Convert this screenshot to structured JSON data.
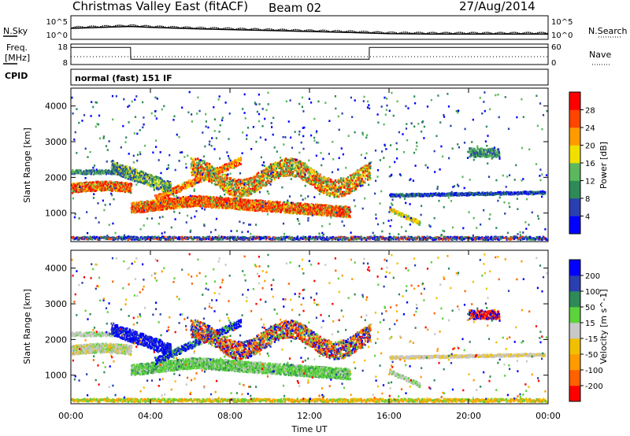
{
  "header": {
    "title": "Christmas Valley East (fitACF)",
    "beam": "Beam 02",
    "date": "27/Aug/2014"
  },
  "panel_labels": {
    "nsky": "N.Sky",
    "nsearch": "N.Search",
    "freq": "Freq.",
    "freq_unit": "[MHz]",
    "nave": "Nave",
    "cpid": "CPID",
    "cpid_value": "normal (fast) 151 IF"
  },
  "colors": {
    "power": [
      "#0000ff",
      "#2a3fb0",
      "#2e8b57",
      "#5cb85c",
      "#f0e000",
      "#ff9a00",
      "#ff4500",
      "#ff0000"
    ],
    "velocity": [
      "#ff0000",
      "#ff6000",
      "#ff9a00",
      "#f0c000",
      "#c8c8c8",
      "#5cd23c",
      "#2e8b57",
      "#2a3fb0",
      "#0000ff"
    ]
  },
  "chart_data": [
    {
      "type": "line",
      "name": "noise",
      "ylabel_left": "N.Sky",
      "ylabel_right": "N.Search",
      "left_ticks": [
        "10^5",
        "10^0"
      ],
      "right_ticks": [
        "10^5",
        "10^0"
      ],
      "x": [
        0,
        1,
        2,
        3,
        4,
        6,
        8,
        10,
        12,
        14,
        15,
        16,
        18,
        20,
        22,
        24
      ],
      "series": [
        {
          "values": [
            3.0,
            3.2,
            3.4,
            3.6,
            3.3,
            2.9,
            2.6,
            2.3,
            2.0,
            1.7,
            1.5,
            1.3,
            1.2,
            1.2,
            1.2,
            1.2
          ]
        }
      ]
    },
    {
      "type": "line",
      "name": "frequency",
      "ylabel_left": "Freq. [MHz]",
      "ylabel_right": "Nave",
      "left_ticks": [
        "18",
        "8"
      ],
      "right_ticks": [
        "60",
        "0"
      ],
      "x": [
        0,
        3.0,
        3.01,
        15.0,
        15.01,
        24
      ],
      "series": [
        {
          "values": [
            16.4,
            16.4,
            10.6,
            10.6,
            16.4,
            16.4
          ]
        }
      ]
    },
    {
      "type": "heatmap",
      "name": "power",
      "xlabel": "",
      "ylabel": "Slant Range [km]",
      "xlim": [
        0,
        24
      ],
      "ylim": [
        200,
        4500
      ],
      "yticks": [
        1000,
        2000,
        3000,
        4000
      ],
      "colorbar_label": "Power [dB]",
      "colorbar_ticks": [
        "4",
        "8",
        "12",
        "16",
        "20",
        "24",
        "28"
      ],
      "colorbar_range": [
        0,
        32
      ]
    },
    {
      "type": "heatmap",
      "name": "velocity",
      "xlabel": "Time UT",
      "ylabel": "Slant Range [km]",
      "xlim": [
        0,
        24
      ],
      "ylim": [
        200,
        4500
      ],
      "yticks": [
        1000,
        2000,
        3000,
        4000
      ],
      "xticks": [
        "00:00",
        "04:00",
        "08:00",
        "12:00",
        "16:00",
        "20:00",
        "00:00"
      ],
      "colorbar_label": "Velocity [m s^-1]",
      "colorbar_ticks": [
        "200",
        "100",
        "50",
        "15",
        "-15",
        "-50",
        "-100",
        "-200"
      ]
    }
  ]
}
